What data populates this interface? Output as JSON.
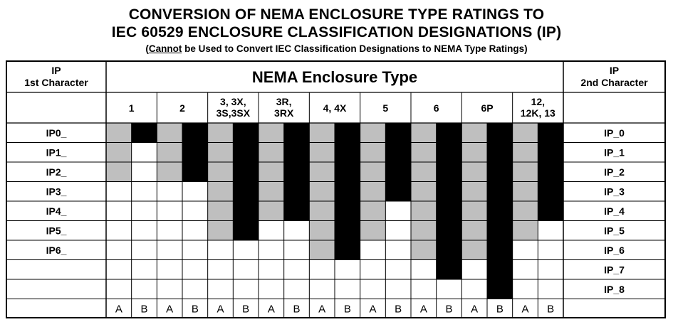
{
  "title_line1": "CONVERSION OF NEMA ENCLOSURE TYPE RATINGS TO",
  "title_line2": "IEC 60529 ENCLOSURE CLASSIFICATION DESIGNATIONS (IP)",
  "subtitle": {
    "open": "(",
    "cannot": "Cannot",
    "rest": " be Used to Convert IEC Classification Designations to NEMA Type Ratings)"
  },
  "left_header": [
    "IP",
    "1st Character"
  ],
  "right_header": [
    "IP",
    "2nd Character"
  ],
  "center_header": "NEMA Enclosure Type",
  "nema_types": [
    [
      "1"
    ],
    [
      "2"
    ],
    [
      "3, 3X,",
      "3S,3SX"
    ],
    [
      "3R,",
      "3RX"
    ],
    [
      "4, 4X"
    ],
    [
      "5"
    ],
    [
      "6"
    ],
    [
      "6P"
    ],
    [
      "12,",
      "12K, 13"
    ]
  ],
  "ip_first": [
    "IP0_",
    "IP1_",
    "IP2_",
    "IP3_",
    "IP4_",
    "IP5_",
    "IP6_",
    "",
    ""
  ],
  "ip_second": [
    "IP_0",
    "IP_1",
    "IP_2",
    "IP_3",
    "IP_4",
    "IP_5",
    "IP_6",
    "IP_7",
    "IP_8"
  ],
  "column_sub": [
    "A",
    "B"
  ],
  "column_a_fill": "#bfbfbf",
  "column_b_fill": "#000000",
  "coverage_rows": {
    "A": [
      3,
      3,
      6,
      5,
      7,
      6,
      7,
      7,
      6
    ],
    "B": [
      1,
      3,
      6,
      5,
      7,
      4,
      8,
      9,
      5
    ]
  }
}
